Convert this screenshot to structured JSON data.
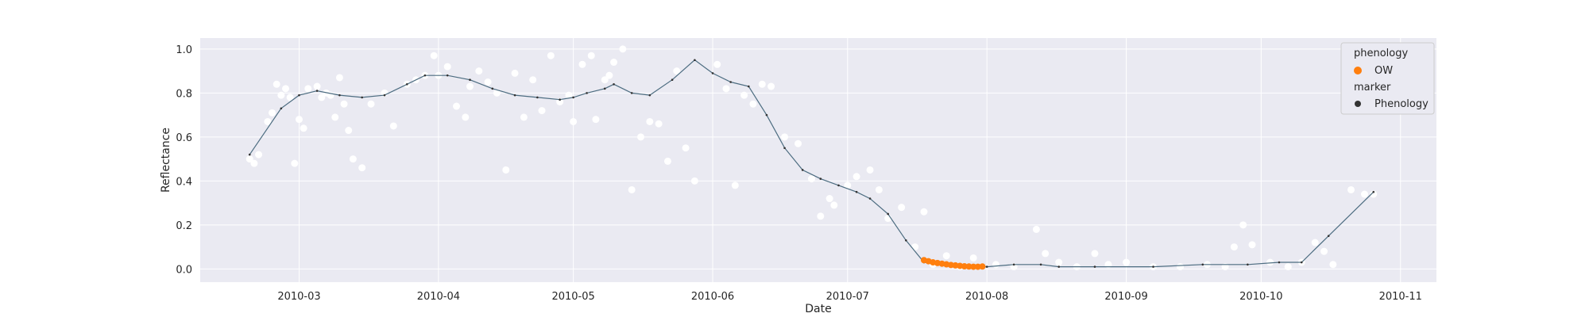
{
  "chart_data": {
    "type": "scatter",
    "title": "",
    "xlabel": "Date",
    "ylabel": "Reflectance",
    "xlim": [
      "2010-02-07",
      "2010-11-09"
    ],
    "ylim": [
      -0.06,
      1.05
    ],
    "x_ticks": [
      "2010-03",
      "2010-04",
      "2010-05",
      "2010-06",
      "2010-07",
      "2010-08",
      "2010-09",
      "2010-10",
      "2010-11"
    ],
    "y_ticks": [
      "0.0",
      "0.2",
      "0.4",
      "0.6",
      "0.8",
      "1.0"
    ],
    "grid": true,
    "legend": {
      "placement": "top-right",
      "sections": [
        {
          "title": "phenology",
          "entries": [
            {
              "label": "OW",
              "color": "#ff7f0e"
            }
          ]
        },
        {
          "title": "marker",
          "entries": [
            {
              "label": "Phenology",
              "color": "#333333"
            }
          ]
        }
      ]
    },
    "colors": {
      "background": "#eaeaf2",
      "grid": "#ffffff",
      "raw_points": "#ffffff",
      "smooth_line": "#4c6c80",
      "phenology": "#ff7f0e"
    },
    "series": [
      {
        "kind": "raw_scatter",
        "x": [
          "2010-02-18",
          "2010-02-19",
          "2010-02-20",
          "2010-02-22",
          "2010-02-23",
          "2010-02-24",
          "2010-02-25",
          "2010-02-26",
          "2010-02-27",
          "2010-02-28",
          "2010-03-01",
          "2010-03-02",
          "2010-03-03",
          "2010-03-05",
          "2010-03-06",
          "2010-03-07",
          "2010-03-08",
          "2010-03-09",
          "2010-03-10",
          "2010-03-11",
          "2010-03-12",
          "2010-03-13",
          "2010-03-15",
          "2010-03-17",
          "2010-03-20",
          "2010-03-22",
          "2010-03-25",
          "2010-03-27",
          "2010-03-29",
          "2010-03-31",
          "2010-04-01",
          "2010-04-03",
          "2010-04-05",
          "2010-04-07",
          "2010-04-08",
          "2010-04-10",
          "2010-04-12",
          "2010-04-14",
          "2010-04-16",
          "2010-04-18",
          "2010-04-20",
          "2010-04-22",
          "2010-04-24",
          "2010-04-26",
          "2010-04-28",
          "2010-04-30",
          "2010-05-01",
          "2010-05-03",
          "2010-05-05",
          "2010-05-06",
          "2010-05-08",
          "2010-05-09",
          "2010-05-10",
          "2010-05-12",
          "2010-05-14",
          "2010-05-16",
          "2010-05-18",
          "2010-05-20",
          "2010-05-22",
          "2010-05-24",
          "2010-05-26",
          "2010-05-28",
          "2010-06-02",
          "2010-06-04",
          "2010-06-06",
          "2010-06-08",
          "2010-06-10",
          "2010-06-12",
          "2010-06-14",
          "2010-06-17",
          "2010-06-20",
          "2010-06-23",
          "2010-06-25",
          "2010-06-27",
          "2010-06-28",
          "2010-07-01",
          "2010-07-03",
          "2010-07-06",
          "2010-07-08",
          "2010-07-10",
          "2010-07-13",
          "2010-07-16",
          "2010-07-18",
          "2010-07-20",
          "2010-07-23",
          "2010-07-26",
          "2010-07-29",
          "2010-08-03",
          "2010-08-07",
          "2010-08-12",
          "2010-08-14",
          "2010-08-17",
          "2010-08-21",
          "2010-08-25",
          "2010-08-28",
          "2010-09-01",
          "2010-09-07",
          "2010-09-13",
          "2010-09-19",
          "2010-09-23",
          "2010-09-25",
          "2010-09-27",
          "2010-09-29",
          "2010-10-03",
          "2010-10-07",
          "2010-10-10",
          "2010-10-13",
          "2010-10-15",
          "2010-10-17",
          "2010-10-21",
          "2010-10-24",
          "2010-10-26"
        ],
        "y": [
          0.5,
          0.48,
          0.52,
          0.67,
          0.71,
          0.84,
          0.79,
          0.82,
          0.78,
          0.48,
          0.68,
          0.64,
          0.82,
          0.83,
          0.78,
          0.8,
          0.79,
          0.69,
          0.87,
          0.75,
          0.63,
          0.5,
          0.46,
          0.75,
          0.8,
          0.65,
          0.84,
          0.86,
          0.88,
          0.97,
          0.88,
          0.92,
          0.74,
          0.69,
          0.83,
          0.9,
          0.85,
          0.8,
          0.45,
          0.89,
          0.69,
          0.86,
          0.72,
          0.97,
          0.76,
          0.79,
          0.67,
          0.93,
          0.97,
          0.68,
          0.86,
          0.88,
          0.94,
          1.0,
          0.36,
          0.6,
          0.67,
          0.66,
          0.49,
          0.9,
          0.55,
          0.4,
          0.93,
          0.82,
          0.38,
          0.79,
          0.75,
          0.84,
          0.83,
          0.6,
          0.57,
          0.41,
          0.24,
          0.32,
          0.29,
          0.38,
          0.42,
          0.45,
          0.36,
          0.23,
          0.28,
          0.1,
          0.26,
          0.02,
          0.06,
          0.01,
          0.05,
          0.02,
          0.01,
          0.18,
          0.07,
          0.03,
          0.01,
          0.07,
          0.02,
          0.03,
          0.01,
          0.01,
          0.02,
          0.01,
          0.1,
          0.2,
          0.11,
          0.03,
          0.01,
          0.03,
          0.12,
          0.08,
          0.02,
          0.36,
          0.34,
          0.34
        ]
      },
      {
        "kind": "smoothed_line",
        "x": [
          "2010-02-18",
          "2010-02-25",
          "2010-03-01",
          "2010-03-05",
          "2010-03-10",
          "2010-03-15",
          "2010-03-20",
          "2010-03-25",
          "2010-03-29",
          "2010-04-03",
          "2010-04-08",
          "2010-04-13",
          "2010-04-18",
          "2010-04-23",
          "2010-04-28",
          "2010-05-01",
          "2010-05-04",
          "2010-05-08",
          "2010-05-10",
          "2010-05-14",
          "2010-05-18",
          "2010-05-23",
          "2010-05-28",
          "2010-06-01",
          "2010-06-05",
          "2010-06-09",
          "2010-06-13",
          "2010-06-17",
          "2010-06-21",
          "2010-06-25",
          "2010-06-29",
          "2010-07-03",
          "2010-07-06",
          "2010-07-10",
          "2010-07-14",
          "2010-07-18",
          "2010-07-22",
          "2010-07-27",
          "2010-08-01",
          "2010-08-07",
          "2010-08-13",
          "2010-08-17",
          "2010-08-25",
          "2010-09-07",
          "2010-09-18",
          "2010-09-28",
          "2010-10-05",
          "2010-10-10",
          "2010-10-16",
          "2010-10-26"
        ],
        "y": [
          0.52,
          0.73,
          0.79,
          0.81,
          0.79,
          0.78,
          0.79,
          0.84,
          0.88,
          0.88,
          0.86,
          0.82,
          0.79,
          0.78,
          0.77,
          0.78,
          0.8,
          0.82,
          0.84,
          0.8,
          0.79,
          0.86,
          0.95,
          0.89,
          0.85,
          0.83,
          0.7,
          0.55,
          0.45,
          0.41,
          0.38,
          0.35,
          0.32,
          0.25,
          0.13,
          0.03,
          0.02,
          0.01,
          0.01,
          0.02,
          0.02,
          0.01,
          0.01,
          0.01,
          0.02,
          0.02,
          0.03,
          0.03,
          0.15,
          0.35
        ]
      },
      {
        "name": "OW",
        "kind": "phenology",
        "x": [
          "2010-07-18",
          "2010-07-19",
          "2010-07-20",
          "2010-07-21",
          "2010-07-22",
          "2010-07-23",
          "2010-07-24",
          "2010-07-25",
          "2010-07-26",
          "2010-07-27",
          "2010-07-28",
          "2010-07-29",
          "2010-07-30",
          "2010-07-31"
        ],
        "y": [
          0.04,
          0.035,
          0.03,
          0.027,
          0.024,
          0.021,
          0.018,
          0.016,
          0.014,
          0.012,
          0.011,
          0.01,
          0.01,
          0.011
        ]
      }
    ]
  }
}
